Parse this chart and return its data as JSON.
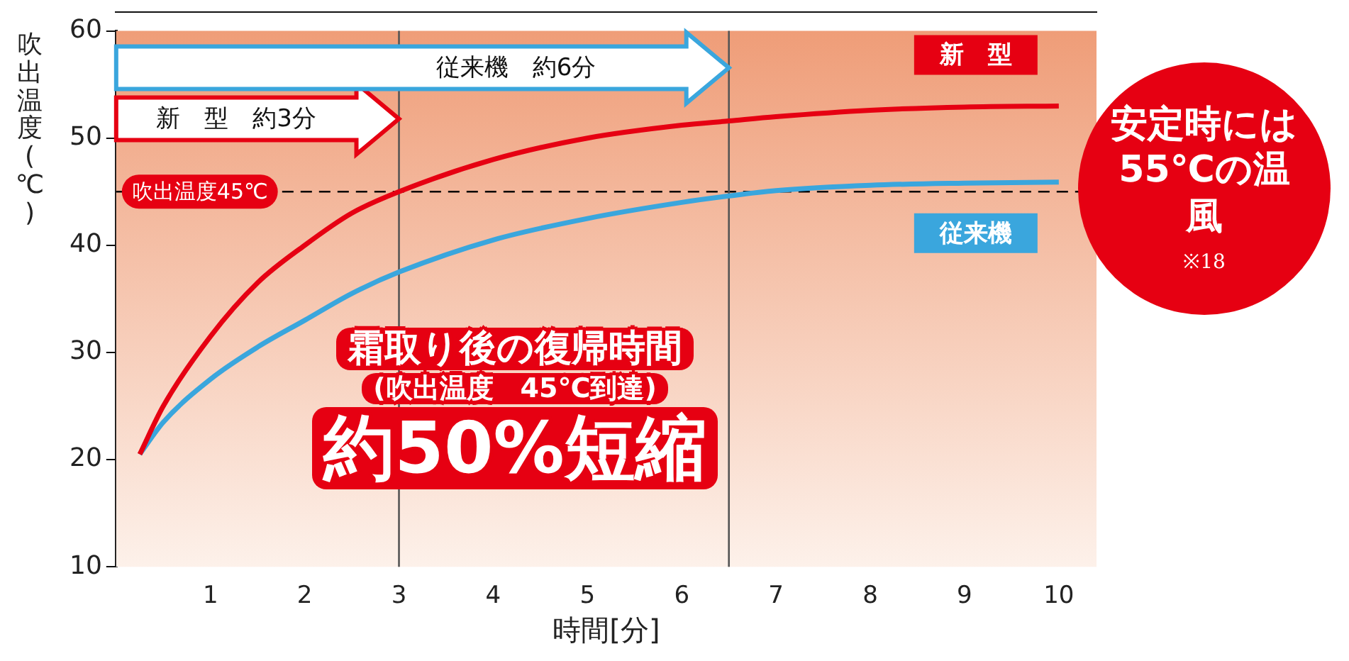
{
  "chart_data": {
    "type": "line",
    "xlabel": "時間[分]",
    "ylabel": "吹出温度(℃)",
    "x": [
      0.25,
      0.5,
      1,
      1.5,
      2,
      2.5,
      3,
      4,
      5,
      6,
      6.5,
      7,
      8,
      9,
      10
    ],
    "series": [
      {
        "name": "新　型",
        "color": "#e60012",
        "values": [
          20.5,
          25,
          31.5,
          36.5,
          40,
          43,
          45,
          48,
          50,
          51.2,
          51.6,
          52,
          52.6,
          52.9,
          53
        ]
      },
      {
        "name": "従来機",
        "color": "#3aa6dd",
        "values": [
          20.5,
          23.5,
          27.5,
          30.5,
          33,
          35.5,
          37.5,
          40.5,
          42.5,
          44,
          44.6,
          45.1,
          45.6,
          45.8,
          45.9
        ]
      }
    ],
    "xlim": [
      0,
      10.4
    ],
    "xticks": [
      1,
      2,
      3,
      4,
      5,
      6,
      7,
      8,
      9,
      10
    ],
    "ylim": [
      10,
      60
    ],
    "yticks": [
      10,
      20,
      30,
      40,
      50,
      60
    ],
    "grid": false,
    "legend": false,
    "marker": "none",
    "line_style": "solid",
    "ref_lines": [
      {
        "axis": "y",
        "value": 45,
        "label": "吹出温度45℃",
        "color": "#000000",
        "line_style": "dashed"
      },
      {
        "axis": "x",
        "value": 3,
        "color": "#555555",
        "line_style": "solid"
      },
      {
        "axis": "x",
        "value": 6.5,
        "color": "#555555",
        "line_style": "solid"
      }
    ],
    "annotations": [
      "新　型　約3分",
      "従来機　約6分",
      "霜取り後の復帰時間",
      "(吹出温度　45℃到達)",
      "約50%短縮",
      "安定時には55℃の温風",
      "※18"
    ]
  }
}
